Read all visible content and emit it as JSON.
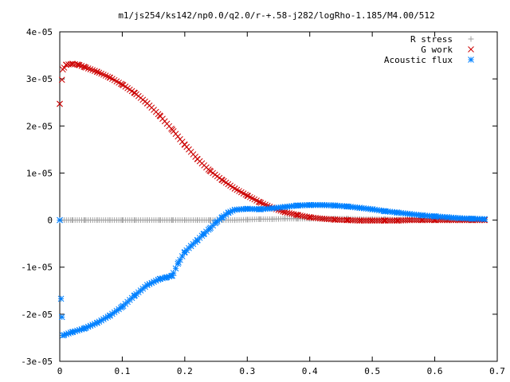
{
  "chart_data": {
    "type": "scatter",
    "title": "m1/js254/ks142/np0.0/q2.0/r-+.58-j282/logRho-1.185/M4.00/512",
    "xlabel": "",
    "ylabel": "",
    "xlim": [
      0,
      0.7
    ],
    "ylim": [
      -3e-05,
      4e-05
    ],
    "x_ticks": [
      {
        "value": 0,
        "label": "0"
      },
      {
        "value": 0.1,
        "label": "0.1"
      },
      {
        "value": 0.2,
        "label": "0.2"
      },
      {
        "value": 0.3,
        "label": "0.3"
      },
      {
        "value": 0.4,
        "label": "0.4"
      },
      {
        "value": 0.5,
        "label": "0.5"
      },
      {
        "value": 0.6,
        "label": "0.6"
      },
      {
        "value": 0.7,
        "label": "0.7"
      }
    ],
    "y_ticks": [
      {
        "value": -3e-05,
        "label": "-3e-05"
      },
      {
        "value": -2e-05,
        "label": "-2e-05"
      },
      {
        "value": -1e-05,
        "label": "-1e-05"
      },
      {
        "value": 0,
        "label": "0"
      },
      {
        "value": 1e-05,
        "label": "1e-05"
      },
      {
        "value": 2e-05,
        "label": "2e-05"
      },
      {
        "value": 3e-05,
        "label": "3e-05"
      },
      {
        "value": 4e-05,
        "label": "4e-05"
      }
    ],
    "grid": false,
    "legend_position": "top-right",
    "series": [
      {
        "name": "R stress",
        "marker": "plus",
        "color": "#a0a0a0",
        "x": [
          0.0,
          0.02,
          0.04,
          0.06,
          0.08,
          0.1,
          0.12,
          0.14,
          0.16,
          0.18,
          0.2,
          0.22,
          0.24,
          0.26,
          0.28,
          0.3,
          0.32,
          0.34,
          0.36,
          0.38,
          0.4,
          0.42,
          0.44,
          0.46,
          0.48,
          0.5,
          0.52,
          0.54,
          0.56,
          0.58,
          0.6,
          0.62,
          0.64,
          0.66,
          0.68
        ],
        "y": [
          0.0,
          0.0,
          0.0,
          0.0,
          0.0,
          0.0,
          0.0,
          0.0,
          0.0,
          0.0,
          0.0,
          0.0,
          0.0,
          0.0,
          0.0,
          1e-07,
          2e-07,
          2e-07,
          3e-07,
          3e-07,
          3e-07,
          3e-07,
          3e-07,
          3e-07,
          2e-07,
          2e-07,
          2e-07,
          1e-07,
          1e-07,
          1e-07,
          1e-07,
          0.0,
          0.0,
          0.0,
          0.0
        ]
      },
      {
        "name": "G work",
        "marker": "cross",
        "color": "#cc0000",
        "x": [
          0.0,
          0.005,
          0.01,
          0.02,
          0.03,
          0.04,
          0.06,
          0.08,
          0.1,
          0.12,
          0.14,
          0.16,
          0.18,
          0.2,
          0.22,
          0.24,
          0.26,
          0.28,
          0.3,
          0.32,
          0.34,
          0.36,
          0.38,
          0.4,
          0.42,
          0.44,
          0.46,
          0.48,
          0.5,
          0.52,
          0.54,
          0.56,
          0.58,
          0.6,
          0.62,
          0.64,
          0.66,
          0.68
        ],
        "y": [
          2.47e-05,
          3.2e-05,
          3.3e-05,
          3.32e-05,
          3.3e-05,
          3.25e-05,
          3.15e-05,
          3.03e-05,
          2.88e-05,
          2.7e-05,
          2.48e-05,
          2.22e-05,
          1.92e-05,
          1.6e-05,
          1.3e-05,
          1.05e-05,
          8.5e-06,
          6.7e-06,
          5.2e-06,
          3.8e-06,
          2.6e-06,
          1.7e-06,
          1.1e-06,
          6e-07,
          3e-07,
          1e-07,
          0.0,
          -1e-07,
          -1e-07,
          -1e-07,
          -1e-07,
          0.0,
          0.0,
          0.0,
          0.0,
          0.0,
          0.0,
          0.0
        ]
      },
      {
        "name": "Acoustic flux",
        "marker": "star",
        "color": "#0080ff",
        "x": [
          0.0,
          0.002,
          0.005,
          0.02,
          0.04,
          0.06,
          0.08,
          0.1,
          0.12,
          0.14,
          0.16,
          0.17,
          0.18,
          0.19,
          0.2,
          0.21,
          0.22,
          0.23,
          0.24,
          0.25,
          0.26,
          0.27,
          0.28,
          0.3,
          0.32,
          0.34,
          0.36,
          0.38,
          0.4,
          0.42,
          0.44,
          0.46,
          0.48,
          0.5,
          0.52,
          0.54,
          0.56,
          0.58,
          0.6,
          0.62,
          0.64,
          0.66,
          0.68
        ],
        "y": [
          0.0,
          -1.67e-05,
          -2.45e-05,
          -2.38e-05,
          -2.3e-05,
          -2.18e-05,
          -2.03e-05,
          -1.84e-05,
          -1.6e-05,
          -1.38e-05,
          -1.25e-05,
          -1.22e-05,
          -1.18e-05,
          -9e-06,
          -6.8e-06,
          -5.5e-06,
          -4.3e-06,
          -3e-06,
          -1.8e-06,
          -5e-07,
          6e-07,
          1.6e-06,
          2.2e-06,
          2.4e-06,
          2.3e-06,
          2.5e-06,
          2.8e-06,
          3.1e-06,
          3.2e-06,
          3.2e-06,
          3.1e-06,
          2.9e-06,
          2.6e-06,
          2.3e-06,
          1.9e-06,
          1.6e-06,
          1.3e-06,
          1e-06,
          8e-07,
          6e-07,
          4e-07,
          3e-07,
          2e-07
        ]
      }
    ]
  }
}
